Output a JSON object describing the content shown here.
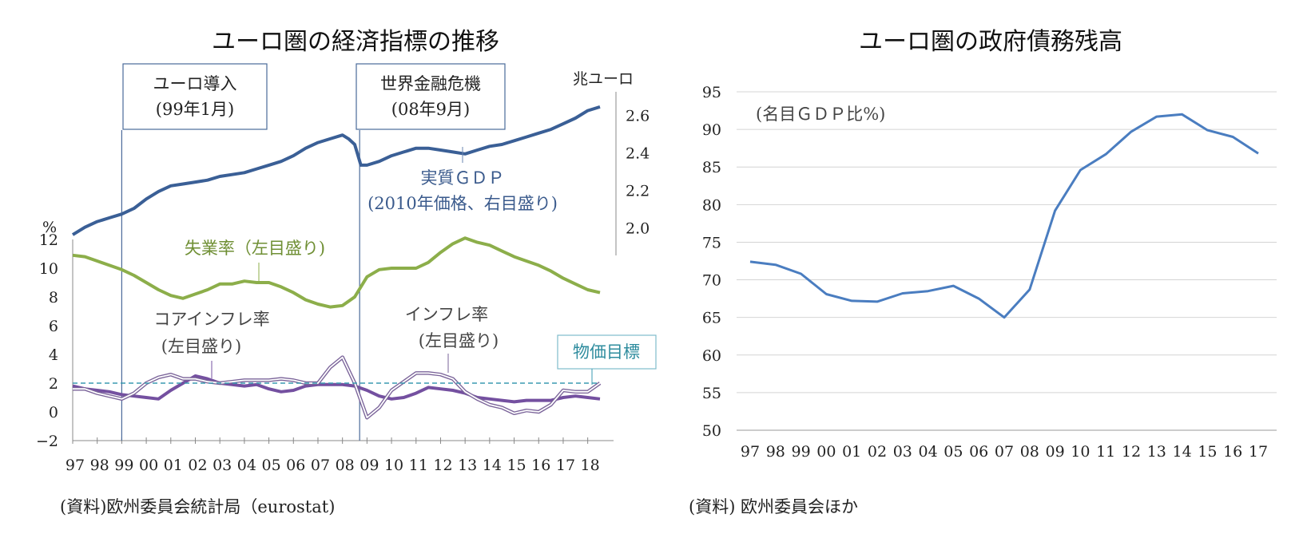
{
  "chart_data": [
    {
      "type": "line",
      "title": "ユーロ圏の経済指標の推移",
      "x_categories": [
        "97",
        "98",
        "99",
        "00",
        "01",
        "02",
        "03",
        "04",
        "05",
        "06",
        "07",
        "08",
        "09",
        "10",
        "11",
        "12",
        "13",
        "14",
        "15",
        "16",
        "17",
        "18"
      ],
      "ylabel_left": "%",
      "ylabel_right": "兆ユーロ",
      "ylim_left": [
        -2,
        12
      ],
      "yticks_left": [
        "−2",
        "0",
        "2",
        "4",
        "6",
        "8",
        "10",
        "12"
      ],
      "ylim_right": [
        1.85,
        2.72
      ],
      "yticks_right": [
        "2.0",
        "2.2",
        "2.4",
        "2.6"
      ],
      "series": [
        {
          "name": "実質ＧＤＰ",
          "axis": "right",
          "color": "#3a5f96",
          "x": [
            1997,
            1997.5,
            1998,
            1998.5,
            1999,
            1999.5,
            2000,
            2000.5,
            2001,
            2001.5,
            2002,
            2002.5,
            2003,
            2003.5,
            2004,
            2004.5,
            2005,
            2005.5,
            2006,
            2006.5,
            2007,
            2007.5,
            2008,
            2008.25,
            2008.5,
            2008.75,
            2009,
            2009.5,
            2010,
            2010.5,
            2011,
            2011.5,
            2012,
            2012.5,
            2013,
            2013.5,
            2014,
            2014.5,
            2015,
            2015.5,
            2016,
            2016.5,
            2017,
            2017.5,
            2018,
            2018.5
          ],
          "values": [
            1.96,
            2.0,
            2.03,
            2.05,
            2.07,
            2.1,
            2.15,
            2.19,
            2.22,
            2.23,
            2.24,
            2.25,
            2.27,
            2.28,
            2.29,
            2.31,
            2.33,
            2.35,
            2.38,
            2.42,
            2.45,
            2.47,
            2.49,
            2.47,
            2.44,
            2.33,
            2.33,
            2.35,
            2.38,
            2.4,
            2.42,
            2.42,
            2.41,
            2.4,
            2.39,
            2.41,
            2.43,
            2.44,
            2.46,
            2.48,
            2.5,
            2.52,
            2.55,
            2.58,
            2.62,
            2.64
          ]
        },
        {
          "name": "失業率",
          "axis": "left",
          "color": "#8cae4a",
          "x": [
            1997,
            1997.5,
            1998,
            1998.5,
            1999,
            1999.5,
            2000,
            2000.5,
            2001,
            2001.5,
            2002,
            2002.5,
            2003,
            2003.5,
            2004,
            2004.5,
            2005,
            2005.5,
            2006,
            2006.5,
            2007,
            2007.5,
            2008,
            2008.5,
            2009,
            2009.5,
            2010,
            2010.5,
            2011,
            2011.5,
            2012,
            2012.5,
            2013,
            2013.5,
            2014,
            2014.5,
            2015,
            2015.5,
            2016,
            2016.5,
            2017,
            2017.5,
            2018,
            2018.5
          ],
          "values": [
            10.9,
            10.8,
            10.5,
            10.2,
            9.9,
            9.5,
            9.0,
            8.5,
            8.1,
            7.9,
            8.2,
            8.5,
            8.9,
            8.9,
            9.1,
            9.0,
            9.0,
            8.7,
            8.3,
            7.8,
            7.5,
            7.3,
            7.4,
            8.0,
            9.4,
            9.9,
            10.0,
            10.0,
            10.0,
            10.4,
            11.1,
            11.7,
            12.1,
            11.8,
            11.6,
            11.2,
            10.8,
            10.5,
            10.2,
            9.8,
            9.3,
            8.9,
            8.5,
            8.3
          ]
        },
        {
          "name": "コアインフレ率",
          "axis": "left",
          "color": "#7450a0",
          "x": [
            1997,
            1997.5,
            1998,
            1998.5,
            1999,
            1999.5,
            2000,
            2000.5,
            2001,
            2001.5,
            2002,
            2002.5,
            2003,
            2003.5,
            2004,
            2004.5,
            2005,
            2005.5,
            2006,
            2006.5,
            2007,
            2007.5,
            2008,
            2008.5,
            2009,
            2009.5,
            2010,
            2010.5,
            2011,
            2011.5,
            2012,
            2012.5,
            2013,
            2013.5,
            2014,
            2014.5,
            2015,
            2015.5,
            2016,
            2016.5,
            2017,
            2017.5,
            2018,
            2018.5
          ],
          "values": [
            1.8,
            1.6,
            1.5,
            1.4,
            1.2,
            1.1,
            1.0,
            0.9,
            1.5,
            2.0,
            2.5,
            2.3,
            2.0,
            1.9,
            1.8,
            1.9,
            1.6,
            1.4,
            1.5,
            1.8,
            1.9,
            1.9,
            1.9,
            1.8,
            1.5,
            1.1,
            0.9,
            1.0,
            1.3,
            1.7,
            1.6,
            1.5,
            1.3,
            1.0,
            0.9,
            0.8,
            0.7,
            0.8,
            0.8,
            0.8,
            1.0,
            1.1,
            1.0,
            0.9
          ]
        },
        {
          "name": "インフレ率",
          "axis": "left",
          "color": "#7a6399",
          "x": [
            1997,
            1997.5,
            1998,
            1998.5,
            1999,
            1999.5,
            2000,
            2000.5,
            2001,
            2001.5,
            2002,
            2002.5,
            2003,
            2003.5,
            2004,
            2004.5,
            2005,
            2005.5,
            2006,
            2006.5,
            2007,
            2007.5,
            2008,
            2008.5,
            2009,
            2009.5,
            2010,
            2010.5,
            2011,
            2011.5,
            2012,
            2012.5,
            2013,
            2013.5,
            2014,
            2014.5,
            2015,
            2015.5,
            2016,
            2016.5,
            2017,
            2017.5,
            2018,
            2018.5
          ],
          "values": [
            1.6,
            1.6,
            1.3,
            1.1,
            0.9,
            1.3,
            2.0,
            2.4,
            2.6,
            2.3,
            2.3,
            2.1,
            2.0,
            2.1,
            2.2,
            2.2,
            2.2,
            2.3,
            2.2,
            2.0,
            2.0,
            3.1,
            3.8,
            2.0,
            -0.4,
            0.3,
            1.5,
            2.1,
            2.7,
            2.7,
            2.6,
            2.3,
            1.4,
            0.9,
            0.5,
            0.3,
            -0.1,
            0.1,
            0.0,
            0.5,
            1.5,
            1.4,
            1.4,
            2.0
          ]
        },
        {
          "name": "物価目標",
          "axis": "left",
          "color": "#3a9ab0",
          "dashed": true,
          "x": [
            1997,
            2018.5
          ],
          "values": [
            2,
            2
          ]
        }
      ],
      "events": [
        {
          "label_line1": "ユーロ導入",
          "label_line2": "(99年1月)",
          "x": 1999.0
        },
        {
          "label_line1": "世界金融危機",
          "label_line2": "(08年9月)",
          "x": 2008.7
        }
      ],
      "annotations": {
        "gdp_line1": "実質ＧＤＰ",
        "gdp_line2": "(2010年価格、右目盛り)",
        "unemp": "失業率（左目盛り)",
        "core_line1": "コアインフレ率",
        "core_line2": "(左目盛り)",
        "infl_line1": "インフレ率",
        "infl_line2": "(左目盛り)",
        "target": "物価目標"
      },
      "source": "(資料)欧州委員会統計局（eurostat)"
    },
    {
      "type": "line",
      "title": "ユーロ圏の政府債務残高",
      "annotation": "(名目ＧＤＰ比%)",
      "categories": [
        "97",
        "98",
        "99",
        "00",
        "01",
        "02",
        "03",
        "04",
        "05",
        "06",
        "07",
        "08",
        "09",
        "10",
        "11",
        "12",
        "13",
        "14",
        "15",
        "16",
        "17"
      ],
      "values": [
        72.4,
        72.0,
        70.8,
        68.1,
        67.2,
        67.1,
        68.2,
        68.5,
        69.2,
        67.5,
        65.0,
        68.7,
        79.2,
        84.6,
        86.7,
        89.7,
        91.7,
        92.0,
        89.9,
        89.0,
        86.8
      ],
      "ylim": [
        50,
        95
      ],
      "yticks": [
        "50",
        "55",
        "60",
        "65",
        "70",
        "75",
        "80",
        "85",
        "90",
        "95"
      ],
      "color": "#4a7dc0",
      "grid": true,
      "source": "(資料) 欧州委員会ほか"
    }
  ]
}
